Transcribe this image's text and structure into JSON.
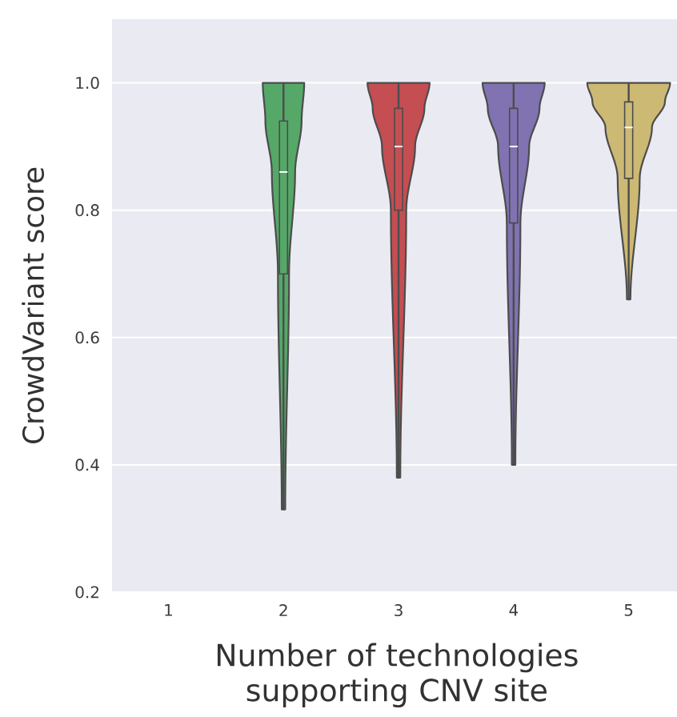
{
  "chart_data": {
    "type": "box",
    "xlabel": "Number of technologies supporting CNV site",
    "ylabel": "CrowdVariant score",
    "categories": [
      "1",
      "2",
      "3",
      "4",
      "5"
    ],
    "boxes": [
      null,
      {
        "low": 0.33,
        "q1": 0.7,
        "median": 0.86,
        "q3": 0.94,
        "high": 1.0
      },
      {
        "low": 0.38,
        "q1": 0.8,
        "median": 0.9,
        "q3": 0.96,
        "high": 1.0
      },
      {
        "low": 0.4,
        "q1": 0.78,
        "median": 0.9,
        "q3": 0.96,
        "high": 1.0
      },
      {
        "low": 0.66,
        "q1": 0.85,
        "median": 0.93,
        "q3": 0.97,
        "high": 1.0
      }
    ],
    "colors": [
      "#4c72b0",
      "#55a868",
      "#c44e52",
      "#8172b2",
      "#ccb974"
    ],
    "ylim": [
      0.2,
      1.1
    ],
    "yticks": [
      0.2,
      0.4,
      0.6,
      0.8,
      {
        "value": 1.0,
        "label": "1.0"
      }
    ],
    "grid": "y"
  }
}
